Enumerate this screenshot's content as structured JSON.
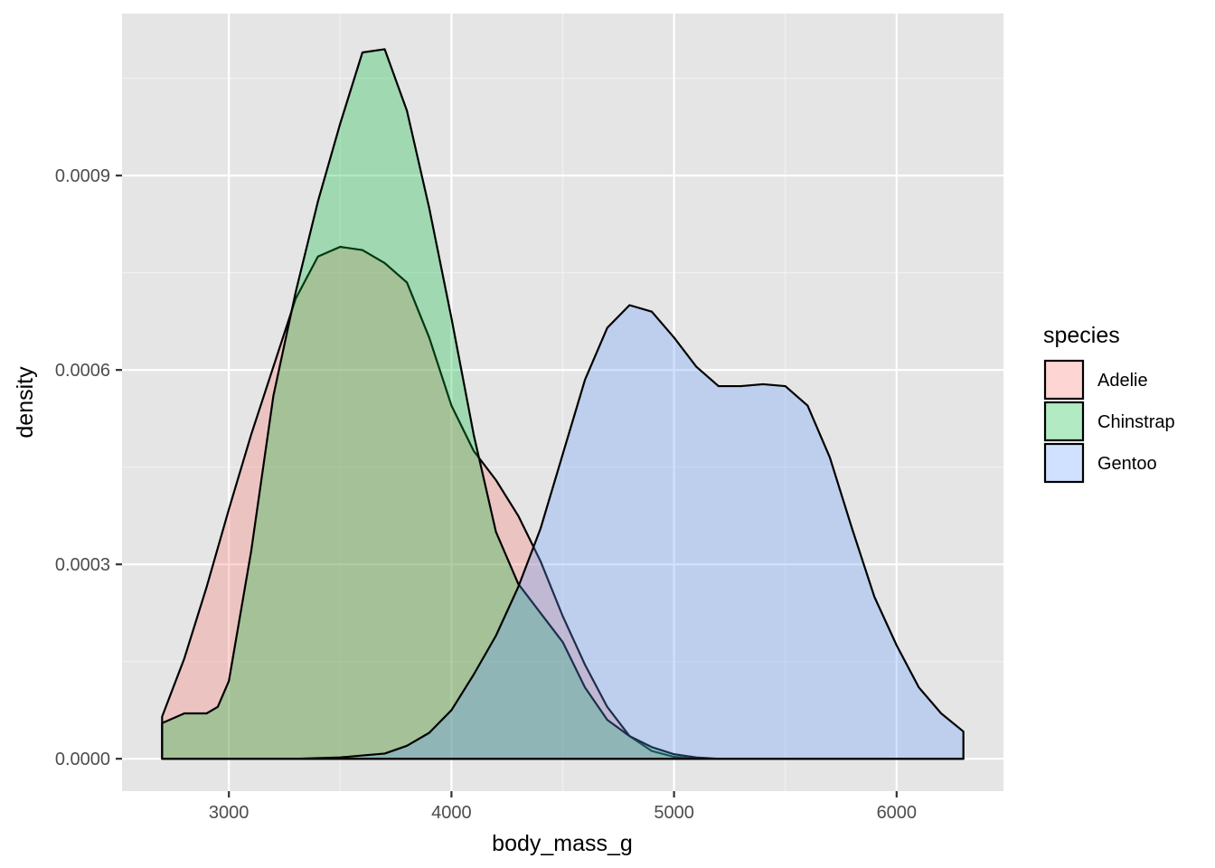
{
  "chart_data": {
    "type": "area",
    "subtype": "density",
    "title": "",
    "xlabel": "body_mass_g",
    "ylabel": "density",
    "xlim": [
      2520,
      6480
    ],
    "ylim": [
      -5e-05,
      0.00115
    ],
    "x_ticks": [
      3000,
      4000,
      5000,
      6000
    ],
    "x_tick_labels": [
      "3000",
      "4000",
      "5000",
      "6000"
    ],
    "y_ticks": [
      0.0,
      0.0003,
      0.0006,
      0.0009
    ],
    "y_tick_labels": [
      "0.0000",
      "0.0003",
      "0.0006",
      "0.0009"
    ],
    "grid": true,
    "background": "#e5e5e5",
    "legend": {
      "title": "species",
      "position": "right"
    },
    "series": [
      {
        "name": "Adelie",
        "color": "#f8766d",
        "fill_opacity": 0.3,
        "points": [
          [
            2700,
            6.5e-05
          ],
          [
            2800,
            0.000155
          ],
          [
            2900,
            0.000265
          ],
          [
            3000,
            0.000385
          ],
          [
            3100,
            0.0005
          ],
          [
            3200,
            0.000605
          ],
          [
            3300,
            0.00071
          ],
          [
            3400,
            0.000775
          ],
          [
            3500,
            0.00079
          ],
          [
            3600,
            0.000785
          ],
          [
            3700,
            0.000765
          ],
          [
            3800,
            0.000735
          ],
          [
            3900,
            0.00065
          ],
          [
            4000,
            0.000545
          ],
          [
            4100,
            0.000475
          ],
          [
            4200,
            0.00043
          ],
          [
            4300,
            0.000375
          ],
          [
            4400,
            0.000305
          ],
          [
            4500,
            0.00022
          ],
          [
            4600,
            0.000145
          ],
          [
            4700,
            8e-05
          ],
          [
            4800,
            3.5e-05
          ],
          [
            4900,
            1.2e-05
          ],
          [
            5000,
            3e-06
          ],
          [
            5100,
            0.0
          ],
          [
            5200,
            0.0
          ],
          [
            5400,
            0.0
          ],
          [
            5600,
            0.0
          ],
          [
            5800,
            0.0
          ],
          [
            6000,
            0.0
          ],
          [
            6300,
            0.0
          ]
        ]
      },
      {
        "name": "Chinstrap",
        "color": "#00ba38",
        "fill_opacity": 0.3,
        "points": [
          [
            2700,
            5.5e-05
          ],
          [
            2800,
            7e-05
          ],
          [
            2900,
            7e-05
          ],
          [
            2950,
            8e-05
          ],
          [
            3000,
            0.00012
          ],
          [
            3100,
            0.00032
          ],
          [
            3200,
            0.00056
          ],
          [
            3300,
            0.00072
          ],
          [
            3400,
            0.00086
          ],
          [
            3500,
            0.00098
          ],
          [
            3600,
            0.00109
          ],
          [
            3700,
            0.001095
          ],
          [
            3800,
            0.001
          ],
          [
            3900,
            0.00085
          ],
          [
            4000,
            0.00068
          ],
          [
            4100,
            0.0005
          ],
          [
            4200,
            0.00035
          ],
          [
            4300,
            0.00027
          ],
          [
            4400,
            0.000225
          ],
          [
            4500,
            0.00018
          ],
          [
            4600,
            0.00011
          ],
          [
            4700,
            6e-05
          ],
          [
            4800,
            3.5e-05
          ],
          [
            4900,
            1.8e-05
          ],
          [
            5000,
            7e-06
          ],
          [
            5100,
            2e-06
          ],
          [
            5200,
            0.0
          ],
          [
            5400,
            0.0
          ],
          [
            5600,
            0.0
          ],
          [
            5800,
            0.0
          ],
          [
            6000,
            0.0
          ],
          [
            6300,
            0.0
          ]
        ]
      },
      {
        "name": "Gentoo",
        "color": "#619cff",
        "fill_opacity": 0.3,
        "points": [
          [
            2700,
            0.0
          ],
          [
            3000,
            0.0
          ],
          [
            3300,
            0.0
          ],
          [
            3500,
            2e-06
          ],
          [
            3600,
            5e-06
          ],
          [
            3700,
            8e-06
          ],
          [
            3800,
            2e-05
          ],
          [
            3900,
            4e-05
          ],
          [
            4000,
            7.5e-05
          ],
          [
            4100,
            0.00013
          ],
          [
            4200,
            0.00019
          ],
          [
            4300,
            0.000265
          ],
          [
            4400,
            0.000355
          ],
          [
            4500,
            0.00047
          ],
          [
            4600,
            0.000585
          ],
          [
            4700,
            0.000665
          ],
          [
            4800,
            0.0007
          ],
          [
            4900,
            0.00069
          ],
          [
            5000,
            0.00065
          ],
          [
            5100,
            0.000605
          ],
          [
            5200,
            0.000575
          ],
          [
            5300,
            0.000575
          ],
          [
            5400,
            0.000578
          ],
          [
            5500,
            0.000575
          ],
          [
            5600,
            0.000545
          ],
          [
            5700,
            0.000465
          ],
          [
            5800,
            0.000355
          ],
          [
            5900,
            0.00025
          ],
          [
            6000,
            0.000175
          ],
          [
            6100,
            0.00011
          ],
          [
            6200,
            7e-05
          ],
          [
            6300,
            4.2e-05
          ]
        ]
      }
    ]
  }
}
